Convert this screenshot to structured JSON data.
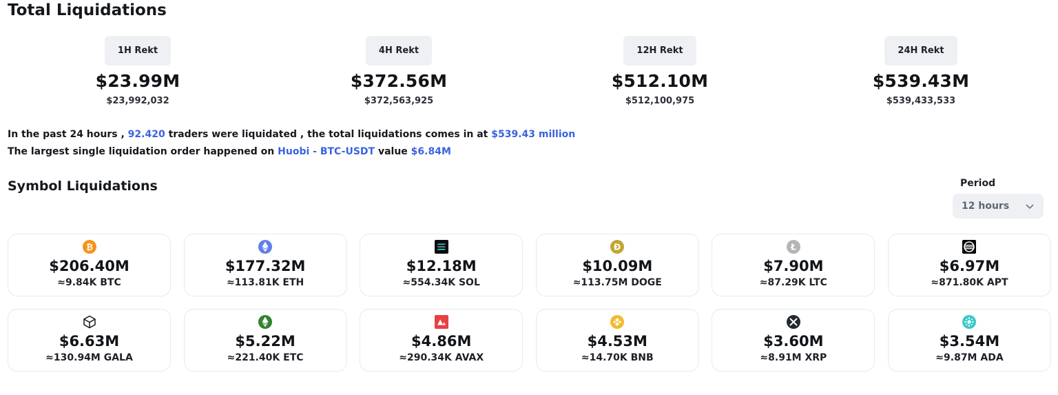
{
  "total": {
    "title": "Total Liquidations",
    "periods": [
      {
        "label": "1H Rekt",
        "amount": "$23.99M",
        "exact": "$23,992,032"
      },
      {
        "label": "4H Rekt",
        "amount": "$372.56M",
        "exact": "$372,563,925"
      },
      {
        "label": "12H Rekt",
        "amount": "$512.10M",
        "exact": "$512,100,975"
      },
      {
        "label": "24H Rekt",
        "amount": "$539.43M",
        "exact": "$539,433,533"
      }
    ]
  },
  "summary": {
    "line1_pre": "In the past 24 hours , ",
    "traders": "92.420",
    "line1_mid": " traders were liquidated , the total liquidations comes in at ",
    "total": "$539.43 million",
    "line2_pre": "The largest single liquidation order happened on ",
    "exchange_pair": "Huobi - BTC-USDT",
    "line2_mid": " value ",
    "largest_value": "$6.84M"
  },
  "symbols": {
    "title": "Symbol Liquidations",
    "period_label": "Period",
    "period_value": "12 hours",
    "cards": [
      {
        "symbol": "BTC",
        "icon": "bitcoin-icon",
        "amount": "$206.40M",
        "qty": "≈9.84K BTC"
      },
      {
        "symbol": "ETH",
        "icon": "ethereum-icon",
        "amount": "$177.32M",
        "qty": "≈113.81K ETH"
      },
      {
        "symbol": "SOL",
        "icon": "solana-icon",
        "amount": "$12.18M",
        "qty": "≈554.34K SOL"
      },
      {
        "symbol": "DOGE",
        "icon": "dogecoin-icon",
        "amount": "$10.09M",
        "qty": "≈113.75M DOGE"
      },
      {
        "symbol": "LTC",
        "icon": "litecoin-icon",
        "amount": "$7.90M",
        "qty": "≈87.29K LTC"
      },
      {
        "symbol": "APT",
        "icon": "aptos-icon",
        "amount": "$6.97M",
        "qty": "≈871.80K APT"
      },
      {
        "symbol": "GALA",
        "icon": "gala-icon",
        "amount": "$6.63M",
        "qty": "≈130.94M GALA"
      },
      {
        "symbol": "ETC",
        "icon": "ethereum-classic-icon",
        "amount": "$5.22M",
        "qty": "≈221.40K ETC"
      },
      {
        "symbol": "AVAX",
        "icon": "avalanche-icon",
        "amount": "$4.86M",
        "qty": "≈290.34K AVAX"
      },
      {
        "symbol": "BNB",
        "icon": "bnb-icon",
        "amount": "$4.53M",
        "qty": "≈14.70K BNB"
      },
      {
        "symbol": "XRP",
        "icon": "xrp-icon",
        "amount": "$3.60M",
        "qty": "≈8.91M XRP"
      },
      {
        "symbol": "ADA",
        "icon": "cardano-icon",
        "amount": "$3.54M",
        "qty": "≈9.87M ADA"
      }
    ]
  },
  "colors": {
    "accent": "#3a62e0",
    "pill_bg": "#eef0f3",
    "card_border": "#e7e9ec"
  }
}
